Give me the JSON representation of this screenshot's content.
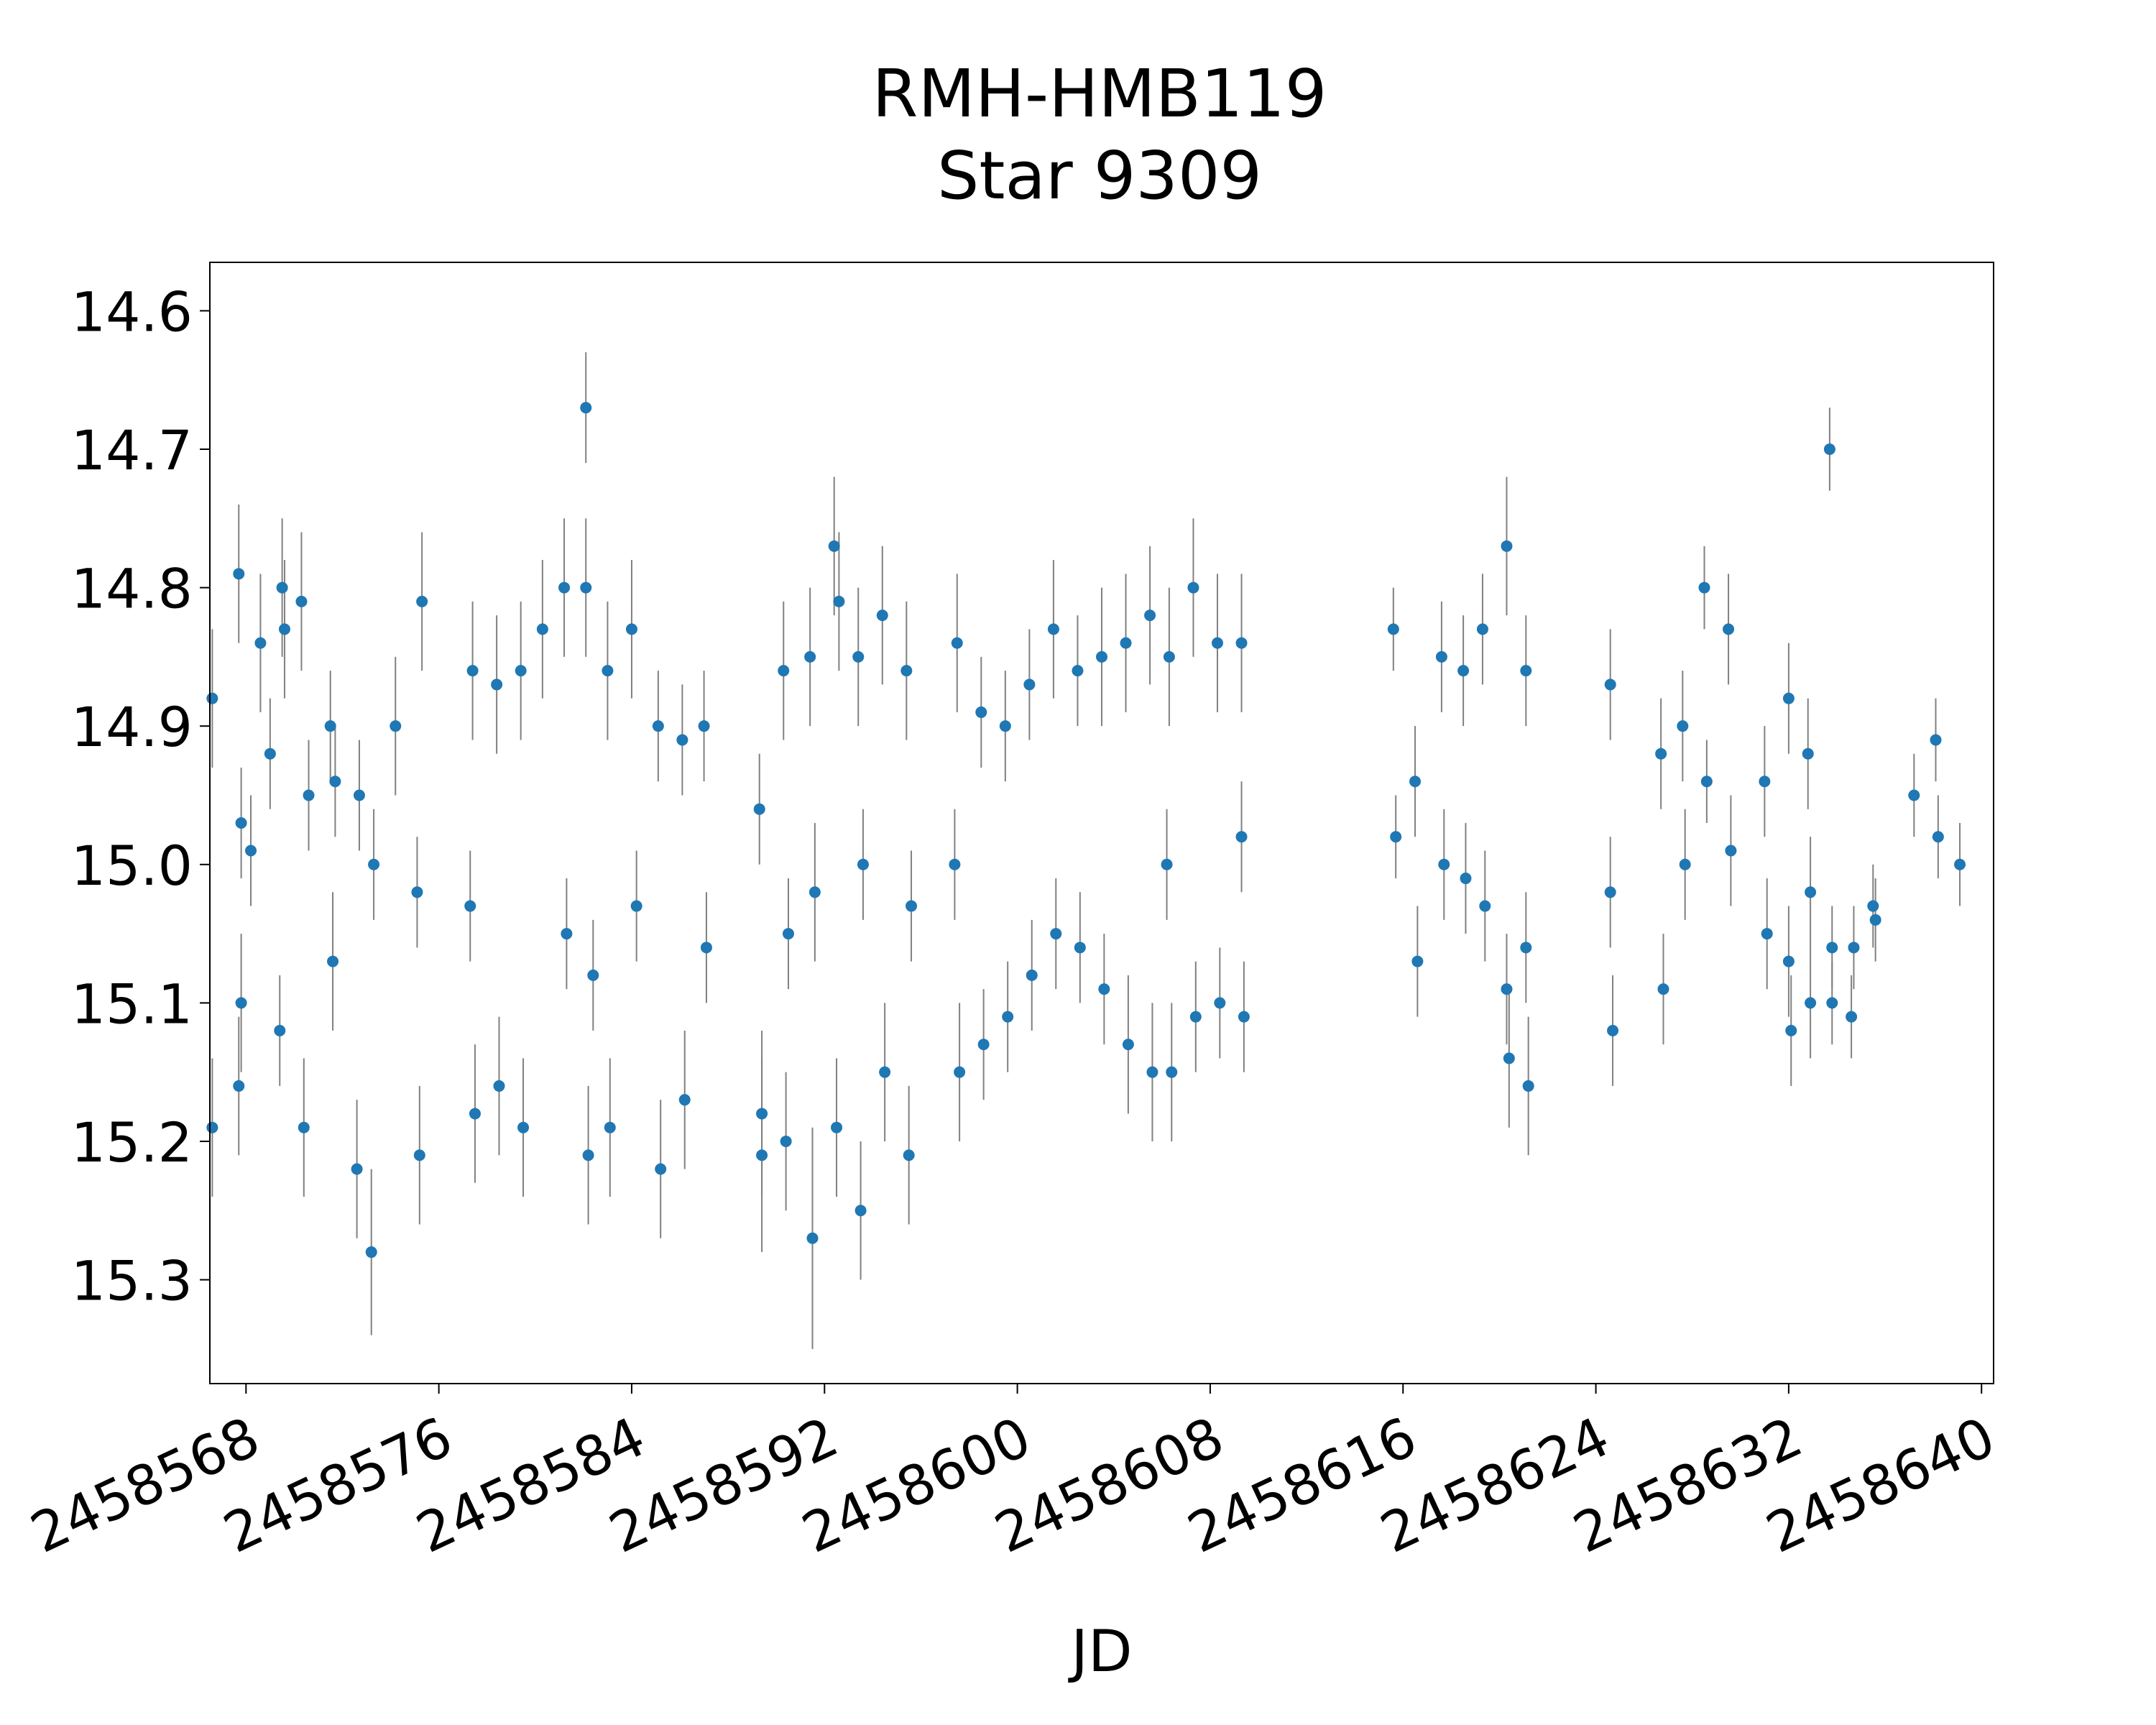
{
  "chart_data": {
    "type": "scatter",
    "title": "RMH-HMB119",
    "subtitle": "Star 9309",
    "xlabel": "JD",
    "ylabel": "",
    "xlim": [
      2458566.5,
      2458640.5
    ],
    "ylim": [
      15.375,
      14.565
    ],
    "y_inverted": true,
    "x_ticks": [
      2458568,
      2458576,
      2458584,
      2458592,
      2458600,
      2458608,
      2458616,
      2458624,
      2458632,
      2458640
    ],
    "x_tick_labels": [
      "2458568",
      "2458576",
      "2458584",
      "2458592",
      "2458600",
      "2458608",
      "2458616",
      "2458624",
      "2458632",
      "2458640"
    ],
    "y_ticks": [
      14.6,
      14.7,
      14.8,
      14.9,
      15.0,
      15.1,
      15.2,
      15.3
    ],
    "y_tick_labels": [
      "14.6",
      "14.7",
      "14.8",
      "14.9",
      "15.0",
      "15.1",
      "15.2",
      "15.3"
    ],
    "grid": false,
    "legend": "none",
    "marker_color": "#1f77b4",
    "errorbar_color": "#808080",
    "series": [
      {
        "points": [
          [
            2458566.6,
            14.88,
            0.05
          ],
          [
            2458566.6,
            15.19,
            0.05
          ],
          [
            2458567.7,
            14.79,
            0.05
          ],
          [
            2458567.8,
            15.1,
            0.05
          ],
          [
            2458567.8,
            14.97,
            0.04
          ],
          [
            2458567.7,
            15.16,
            0.05
          ],
          [
            2458568.2,
            14.99,
            0.04
          ],
          [
            2458569.5,
            14.8,
            0.05
          ],
          [
            2458569.6,
            14.83,
            0.05
          ],
          [
            2458569.4,
            15.12,
            0.04
          ],
          [
            2458568.6,
            14.84,
            0.05
          ],
          [
            2458569.0,
            14.92,
            0.04
          ],
          [
            2458570.3,
            14.81,
            0.05
          ],
          [
            2458570.4,
            15.19,
            0.05
          ],
          [
            2458570.6,
            14.95,
            0.04
          ],
          [
            2458571.5,
            14.9,
            0.04
          ],
          [
            2458571.6,
            15.07,
            0.05
          ],
          [
            2458571.7,
            14.94,
            0.04
          ],
          [
            2458572.6,
            15.22,
            0.05
          ],
          [
            2458572.7,
            14.95,
            0.04
          ],
          [
            2458573.2,
            15.28,
            0.06
          ],
          [
            2458573.3,
            15.0,
            0.04
          ],
          [
            2458574.2,
            14.9,
            0.05
          ],
          [
            2458575.2,
            15.21,
            0.05
          ],
          [
            2458575.3,
            14.81,
            0.05
          ],
          [
            2458575.1,
            15.02,
            0.04
          ],
          [
            2458577.4,
            14.86,
            0.05
          ],
          [
            2458577.5,
            15.18,
            0.05
          ],
          [
            2458577.3,
            15.03,
            0.04
          ],
          [
            2458578.4,
            14.87,
            0.05
          ],
          [
            2458578.5,
            15.16,
            0.05
          ],
          [
            2458579.4,
            14.86,
            0.05
          ],
          [
            2458579.5,
            15.19,
            0.05
          ],
          [
            2458580.3,
            14.83,
            0.05
          ],
          [
            2458581.2,
            14.8,
            0.05
          ],
          [
            2458581.3,
            15.05,
            0.04
          ],
          [
            2458582.1,
            14.8,
            0.05
          ],
          [
            2458582.2,
            15.21,
            0.05
          ],
          [
            2458582.1,
            14.67,
            0.04
          ],
          [
            2458582.4,
            15.08,
            0.04
          ],
          [
            2458583.0,
            14.86,
            0.05
          ],
          [
            2458583.1,
            15.19,
            0.05
          ],
          [
            2458584.0,
            14.83,
            0.05
          ],
          [
            2458584.2,
            15.03,
            0.04
          ],
          [
            2458585.1,
            14.9,
            0.04
          ],
          [
            2458585.2,
            15.22,
            0.05
          ],
          [
            2458586.1,
            14.91,
            0.04
          ],
          [
            2458586.2,
            15.17,
            0.05
          ],
          [
            2458587.0,
            14.9,
            0.04
          ],
          [
            2458587.1,
            15.06,
            0.04
          ],
          [
            2458589.3,
            14.96,
            0.04
          ],
          [
            2458589.4,
            15.21,
            0.07
          ],
          [
            2458589.4,
            15.18,
            0.06
          ],
          [
            2458590.3,
            14.86,
            0.05
          ],
          [
            2458590.4,
            15.2,
            0.05
          ],
          [
            2458590.5,
            15.05,
            0.04
          ],
          [
            2458591.4,
            14.85,
            0.05
          ],
          [
            2458591.5,
            15.27,
            0.08
          ],
          [
            2458591.6,
            15.02,
            0.05
          ],
          [
            2458592.4,
            14.77,
            0.05
          ],
          [
            2458592.5,
            15.19,
            0.05
          ],
          [
            2458592.6,
            14.81,
            0.05
          ],
          [
            2458593.4,
            14.85,
            0.05
          ],
          [
            2458593.5,
            15.25,
            0.05
          ],
          [
            2458593.6,
            15.0,
            0.04
          ],
          [
            2458594.4,
            14.82,
            0.05
          ],
          [
            2458594.5,
            15.15,
            0.05
          ],
          [
            2458595.4,
            14.86,
            0.05
          ],
          [
            2458595.5,
            15.21,
            0.05
          ],
          [
            2458595.6,
            15.03,
            0.04
          ],
          [
            2458597.5,
            14.84,
            0.05
          ],
          [
            2458597.6,
            15.15,
            0.05
          ],
          [
            2458597.4,
            15.0,
            0.04
          ],
          [
            2458598.5,
            14.89,
            0.04
          ],
          [
            2458598.6,
            15.13,
            0.04
          ],
          [
            2458599.5,
            14.9,
            0.04
          ],
          [
            2458599.6,
            15.11,
            0.04
          ],
          [
            2458600.5,
            14.87,
            0.04
          ],
          [
            2458600.6,
            15.08,
            0.04
          ],
          [
            2458601.5,
            14.83,
            0.05
          ],
          [
            2458601.6,
            15.05,
            0.04
          ],
          [
            2458602.5,
            14.86,
            0.04
          ],
          [
            2458602.6,
            15.06,
            0.04
          ],
          [
            2458603.5,
            14.85,
            0.05
          ],
          [
            2458603.6,
            15.09,
            0.04
          ],
          [
            2458604.5,
            14.84,
            0.05
          ],
          [
            2458604.6,
            15.13,
            0.05
          ],
          [
            2458605.5,
            14.82,
            0.05
          ],
          [
            2458605.6,
            15.15,
            0.05
          ],
          [
            2458606.3,
            14.85,
            0.05
          ],
          [
            2458606.4,
            15.15,
            0.05
          ],
          [
            2458606.2,
            15.0,
            0.04
          ],
          [
            2458607.3,
            14.8,
            0.05
          ],
          [
            2458607.4,
            15.11,
            0.04
          ],
          [
            2458608.3,
            14.84,
            0.05
          ],
          [
            2458608.4,
            15.1,
            0.04
          ],
          [
            2458609.3,
            14.84,
            0.05
          ],
          [
            2458609.4,
            15.11,
            0.04
          ],
          [
            2458609.3,
            14.98,
            0.04
          ],
          [
            2458615.6,
            14.83,
            0.03
          ],
          [
            2458615.7,
            14.98,
            0.03
          ],
          [
            2458616.5,
            14.94,
            0.04
          ],
          [
            2458616.6,
            15.07,
            0.04
          ],
          [
            2458617.6,
            14.85,
            0.04
          ],
          [
            2458617.7,
            15.0,
            0.04
          ],
          [
            2458618.5,
            14.86,
            0.04
          ],
          [
            2458618.6,
            15.01,
            0.04
          ],
          [
            2458619.3,
            14.83,
            0.04
          ],
          [
            2458619.4,
            15.03,
            0.04
          ],
          [
            2458620.3,
            14.77,
            0.05
          ],
          [
            2458620.4,
            15.14,
            0.05
          ],
          [
            2458620.3,
            15.09,
            0.04
          ],
          [
            2458621.1,
            14.86,
            0.04
          ],
          [
            2458621.2,
            15.16,
            0.05
          ],
          [
            2458621.1,
            15.06,
            0.04
          ],
          [
            2458624.6,
            14.87,
            0.04
          ],
          [
            2458624.7,
            15.12,
            0.04
          ],
          [
            2458624.6,
            15.02,
            0.04
          ],
          [
            2458626.7,
            14.92,
            0.04
          ],
          [
            2458626.8,
            15.09,
            0.04
          ],
          [
            2458627.6,
            14.9,
            0.04
          ],
          [
            2458627.7,
            15.0,
            0.04
          ],
          [
            2458628.5,
            14.8,
            0.03
          ],
          [
            2458628.6,
            14.94,
            0.03
          ],
          [
            2458629.5,
            14.83,
            0.04
          ],
          [
            2458629.6,
            14.99,
            0.04
          ],
          [
            2458631.0,
            14.94,
            0.04
          ],
          [
            2458631.1,
            15.05,
            0.04
          ],
          [
            2458632.0,
            14.88,
            0.04
          ],
          [
            2458632.1,
            15.12,
            0.04
          ],
          [
            2458632.0,
            15.07,
            0.04
          ],
          [
            2458632.8,
            14.92,
            0.04
          ],
          [
            2458632.9,
            15.1,
            0.04
          ],
          [
            2458632.9,
            15.02,
            0.04
          ],
          [
            2458633.7,
            14.7,
            0.03
          ],
          [
            2458633.8,
            15.1,
            0.03
          ],
          [
            2458633.8,
            15.06,
            0.03
          ],
          [
            2458634.6,
            15.11,
            0.03
          ],
          [
            2458634.7,
            15.06,
            0.03
          ],
          [
            2458635.5,
            15.03,
            0.03
          ],
          [
            2458635.6,
            15.04,
            0.03
          ],
          [
            2458637.2,
            14.95,
            0.03
          ],
          [
            2458638.1,
            14.91,
            0.03
          ],
          [
            2458638.2,
            14.98,
            0.03
          ],
          [
            2458639.1,
            15.0,
            0.03
          ]
        ]
      }
    ]
  }
}
